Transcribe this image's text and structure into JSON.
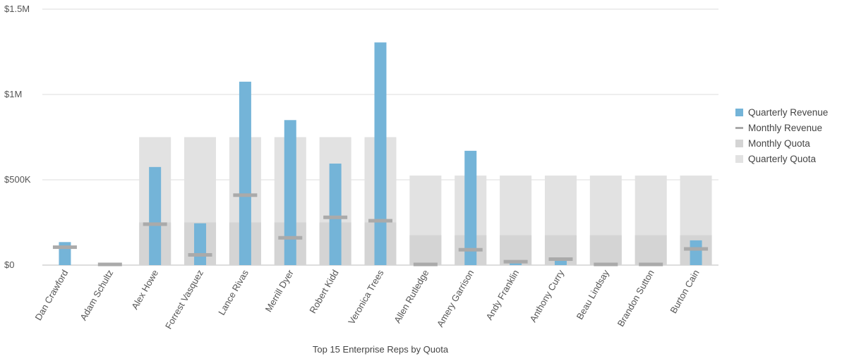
{
  "chart_data": {
    "type": "bar",
    "xlabel": "Top 15 Enterprise Reps by Quota",
    "ylabel": "",
    "ylim": [
      0,
      1500000
    ],
    "yticks": [
      {
        "value": 0,
        "label": "$0"
      },
      {
        "value": 500000,
        "label": "$500K"
      },
      {
        "value": 1000000,
        "label": "$1M"
      },
      {
        "value": 1500000,
        "label": "$1.5M"
      }
    ],
    "grid": true,
    "legend_position": "right",
    "categories": [
      "Dan Crawford",
      "Adam Schultz",
      "Alex Howe",
      "Forrest Vasquez",
      "Lance Rivas",
      "Merrill Dyer",
      "Robert Kidd",
      "Veronica Trees",
      "Allen Rutledge",
      "Amery Garrison",
      "Andy Franklin",
      "Anthony Curry",
      "Beau Lindsay",
      "Brandon Sutton",
      "Burton Cain"
    ],
    "series": [
      {
        "name": "Quarterly Revenue",
        "kind": "bar",
        "color": "#74b4d8",
        "values": [
          135000,
          0,
          575000,
          245000,
          1075000,
          850000,
          595000,
          1305000,
          0,
          670000,
          20000,
          40000,
          0,
          0,
          145000
        ]
      },
      {
        "name": "Monthly Revenue",
        "kind": "marker",
        "color": "#aaaaaa",
        "values": [
          105000,
          0,
          240000,
          60000,
          410000,
          160000,
          280000,
          260000,
          0,
          90000,
          20000,
          35000,
          0,
          0,
          95000
        ]
      },
      {
        "name": "Monthly Quota",
        "kind": "bar",
        "color": "#d4d4d4",
        "values": [
          0,
          0,
          250000,
          250000,
          250000,
          250000,
          250000,
          250000,
          175000,
          175000,
          175000,
          175000,
          175000,
          175000,
          175000
        ]
      },
      {
        "name": "Quarterly Quota",
        "kind": "bar",
        "color": "#e2e2e2",
        "values": [
          0,
          0,
          750000,
          750000,
          750000,
          750000,
          750000,
          750000,
          525000,
          525000,
          525000,
          525000,
          525000,
          525000,
          525000
        ]
      }
    ]
  }
}
